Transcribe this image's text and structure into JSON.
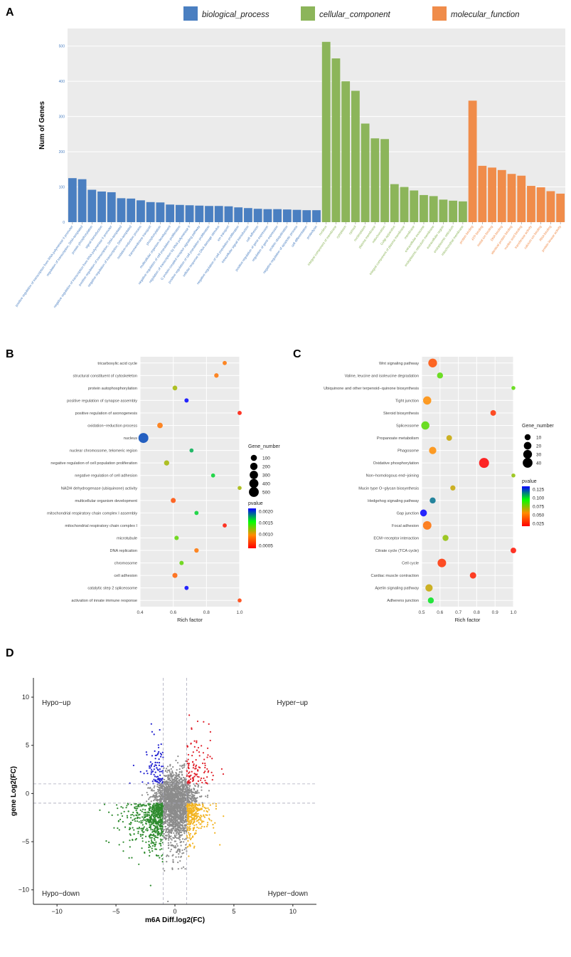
{
  "chart_data": [
    {
      "id": "A",
      "panel_letter": "A",
      "type": "bar",
      "ylabel": "Num of Genes",
      "ylim": [
        0,
        550
      ],
      "yticks": [
        0,
        100,
        200,
        300,
        400,
        500
      ],
      "legend": [
        {
          "name": "biological_process",
          "color": "#4a7fc1"
        },
        {
          "name": "cellular_component",
          "color": "#8cb55a"
        },
        {
          "name": "molecular_function",
          "color": "#f08c4a"
        }
      ],
      "groups": [
        {
          "name": "biological_process",
          "color": "#4a7fc1",
          "categories": [
            "positive regulation of transcription from RNA polymerase II promoter",
            "regulation of transcription, DNA-templated",
            "protein phosphorylation",
            "signal transduction",
            "negative regulation of transcription from RNA polymerase II promoter",
            "positive regulation of transcription, DNA-templated",
            "negative regulation of transcription, DNA-templated",
            "oxidation-reduction process",
            "transmembrane transport",
            "phosphorylation",
            "multicellular organism development",
            "negative regulation of cell population proliferation",
            "regulation of transcription by RNA polymerase II",
            "G protein-coupled receptor signaling pathway",
            "positive regulation of cell population proliferation",
            "cellular response to DNA damage stimulus",
            "ion transport",
            "negative regulation of cell population proliferation",
            "intracellular signal transduction",
            "cell adhesion",
            "positive regulation of gene expression",
            "regulation of gene expression",
            "protein ubiquitination",
            "negative regulation of apoptotic process",
            "cell differentiation",
            "proteolysis"
          ],
          "values": [
            125,
            122,
            92,
            87,
            85,
            68,
            67,
            62,
            57,
            56,
            50,
            49,
            48,
            47,
            46,
            46,
            45,
            42,
            40,
            38,
            37,
            37,
            36,
            35,
            34,
            34
          ]
        },
        {
          "name": "cellular_component",
          "color": "#8cb55a",
          "categories": [
            "nucleus",
            "integral component of membrane",
            "cytoplasm",
            "cytosol",
            "nucleoplasm",
            "plasma membrane",
            "mitochondrion",
            "Golgi apparatus",
            "integral component of plasma membrane",
            "membrane",
            "extracellular exosome",
            "endoplasmic reticulum membrane",
            "extracellular region",
            "endoplasmic reticulum",
            "mitochondrial membrane"
          ],
          "values": [
            512,
            465,
            400,
            373,
            280,
            238,
            236,
            108,
            100,
            90,
            77,
            74,
            64,
            61,
            59
          ]
        },
        {
          "name": "molecular_function",
          "color": "#f08c4a",
          "categories": [
            "protein binding",
            "ATP binding",
            "metal ion binding",
            "DNA binding",
            "identical protein binding",
            "nucleic acid binding",
            "transferase activity",
            "calcium ion binding",
            "RNA binding",
            "protein kinase activity"
          ],
          "values": [
            345,
            160,
            155,
            148,
            137,
            132,
            103,
            99,
            88,
            81
          ]
        }
      ]
    },
    {
      "id": "B",
      "panel_letter": "B",
      "type": "scatter",
      "xlabel": "Rich factor",
      "xlim": [
        0.4,
        1.0
      ],
      "xticks": [
        "0.4",
        "0.6",
        "0.8",
        "1.0"
      ],
      "size_legend_title": "Gene_number",
      "size_legend": [
        100,
        200,
        300,
        400,
        500
      ],
      "color_legend_title": "pvalue",
      "color_legend_ticks": [
        "0.0020",
        "0.0015",
        "0.0010",
        "0.0005"
      ],
      "color_range": [
        0.0002,
        0.0024
      ],
      "terms": [
        "tricarboxylic acid cycle",
        "structural constituent of cytoskeleton",
        "protein autophosphorylation",
        "positive regulation of synapse assembly",
        "positive regulation of axonogenesis",
        "oxidation−reduction process",
        "nucleus",
        "nuclear chromosome, telomeric region",
        "negative regulation of cell population proliferation",
        "negative regulation of cell adhesion",
        "NADH dehydrogenase (ubiquinone) activity",
        "multicellular organism development",
        "mitochondrial respiratory chain complex I assembly",
        "mitochondrial respiratory chain complex I",
        "microtubule",
        "DNA replication",
        "chromosome",
        "cell adhesion",
        "catalytic step 2 spliceosome",
        "activation of innate immune response"
      ],
      "rich_factor": [
        0.91,
        0.86,
        0.61,
        0.68,
        1.0,
        0.52,
        0.42,
        0.71,
        0.56,
        0.84,
        1.0,
        0.6,
        0.74,
        0.91,
        0.62,
        0.74,
        0.65,
        0.61,
        0.68,
        1.0
      ],
      "gene_number": [
        12,
        20,
        30,
        14,
        12,
        65,
        520,
        10,
        50,
        10,
        8,
        40,
        12,
        12,
        16,
        20,
        14,
        40,
        12,
        8
      ],
      "pvalue": [
        0.0008,
        0.0008,
        0.0012,
        0.0024,
        0.0003,
        0.0008,
        0.0022,
        0.0019,
        0.0012,
        0.0018,
        0.0012,
        0.0006,
        0.0018,
        0.0003,
        0.0014,
        0.0008,
        0.0014,
        0.0007,
        0.0024,
        0.0005
      ]
    },
    {
      "id": "C",
      "panel_letter": "C",
      "type": "scatter",
      "xlabel": "Rich factor",
      "xlim": [
        0.5,
        1.0
      ],
      "xticks": [
        "0.5",
        "0.6",
        "0.7",
        "0.8",
        "0.9",
        "1.0"
      ],
      "size_legend_title": "Gene_number",
      "size_legend": [
        10,
        20,
        30,
        40
      ],
      "color_legend_title": "pvalue",
      "color_legend_ticks": [
        "0.125",
        "0.100",
        "0.075",
        "0.050",
        "0.025"
      ],
      "color_range": [
        0.005,
        0.14
      ],
      "terms": [
        "Wnt signaling pathway",
        "Valine, leucine and isoleucine degradation",
        "Ubiquinone and other terpenoid−quinone biosynthesis",
        "Tight junction",
        "Steroid biosynthesis",
        "Spliceosome",
        "Propanoate metabolism",
        "Phagosome",
        "Oxidative phosphorylation",
        "Non−homologous end−joining",
        "Mucin type O−glycan biosynthesis",
        "Hedgehog signaling pathway",
        "Gap junction",
        "Focal adhesion",
        "ECM−receptor interaction",
        "Citrate cycle (TCA cycle)",
        "Cell cycle",
        "Cardiac muscle contraction",
        "Apelin signaling pathway",
        "Adherens junction"
      ],
      "rich_factor": [
        0.56,
        0.6,
        1.0,
        0.53,
        0.89,
        0.52,
        0.65,
        0.56,
        0.84,
        1.0,
        0.67,
        0.56,
        0.51,
        0.53,
        0.63,
        1.0,
        0.61,
        0.78,
        0.54,
        0.55
      ],
      "gene_number": [
        30,
        10,
        2,
        25,
        8,
        25,
        8,
        18,
        42,
        2,
        6,
        10,
        15,
        28,
        10,
        8,
        28,
        12,
        18,
        10
      ],
      "pvalue": [
        0.03,
        0.08,
        0.08,
        0.05,
        0.02,
        0.08,
        0.06,
        0.05,
        0.005,
        0.07,
        0.06,
        0.12,
        0.14,
        0.04,
        0.07,
        0.01,
        0.02,
        0.015,
        0.06,
        0.1
      ]
    },
    {
      "id": "D",
      "panel_letter": "D",
      "type": "scatter",
      "xlabel": "m6A Diff.log2(FC)",
      "ylabel": "gene Log2(FC)",
      "xlim": [
        -12,
        12
      ],
      "ylim": [
        -11.5,
        12
      ],
      "xticks": [
        -10,
        -5,
        0,
        5,
        10
      ],
      "yticks": [
        -10,
        -5,
        0,
        5,
        10
      ],
      "thresholds": {
        "x": [
          -1,
          1
        ],
        "y": [
          -1,
          1
        ]
      },
      "quadrants": {
        "top_left": "Hypo−up",
        "top_right": "Hyper−up",
        "bottom_left": "Hypo−down",
        "bottom_right": "Hyper−down"
      },
      "colors": {
        "hypo_up": "#1f1fd0",
        "hyper_up": "#e0202a",
        "hypo_down": "#2e8b2e",
        "hyper_down": "#f2b320",
        "ns": "#8c8c8c"
      }
    }
  ]
}
